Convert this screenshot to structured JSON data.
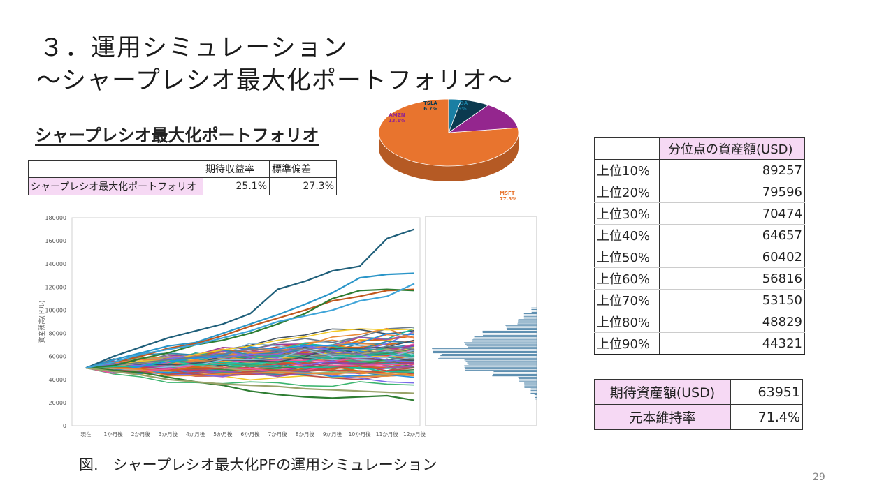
{
  "slide": {
    "title_line1": "３．運用シミュレーション",
    "title_line2": "～シャープレシオ最大化ポートフォリオ～",
    "portfolio_heading": "シャープレシオ最大化ポートフォリオ",
    "caption": "図.　シャープレシオ最大化PFの運用シミュレーション",
    "page_number": "29"
  },
  "stats_table": {
    "col_expected": "期待収益率",
    "col_stdev": "標準偏差",
    "row_name": "シャープレシオ最大化ポートフォリオ",
    "expected": "25.1%",
    "stdev": "27.3%"
  },
  "quantile_table": {
    "header": "分位点の資産額(USD)",
    "rows": [
      {
        "label": "上位10%",
        "value": "89257"
      },
      {
        "label": "上位20%",
        "value": "79596"
      },
      {
        "label": "上位30%",
        "value": "70474"
      },
      {
        "label": "上位40%",
        "value": "64657"
      },
      {
        "label": "上位50%",
        "value": "60402"
      },
      {
        "label": "上位60%",
        "value": "56816"
      },
      {
        "label": "上位70%",
        "value": "53150"
      },
      {
        "label": "上位80%",
        "value": "48829"
      },
      {
        "label": "上位90%",
        "value": "44321"
      }
    ]
  },
  "summary_table": {
    "expected_label": "期待資産額(USD)",
    "expected_value": "63951",
    "retention_label": "元本維持率",
    "retention_value": "71.4%"
  },
  "colors": {
    "msft": "#e8742e",
    "amzn": "#94268e",
    "tsla": "#0b3a4f",
    "nvda": "#1a7fa3",
    "header_fill": "#f6d9f4",
    "histogram": "#5e8fb0"
  },
  "chart_data": [
    {
      "type": "pie",
      "title": "",
      "slices": [
        {
          "label": "MSFT",
          "value": 77.3,
          "display": "77.3%",
          "color": "#e8742e"
        },
        {
          "label": "AMZN",
          "value": 13.1,
          "display": "13.1%",
          "color": "#94268e"
        },
        {
          "label": "TSLA",
          "value": 6.7,
          "display": "6.7%",
          "color": "#0b3a4f"
        },
        {
          "label": "NVDA",
          "value": 2.9,
          "display": "2.9%",
          "color": "#1a7fa3"
        }
      ]
    },
    {
      "type": "line",
      "title": "",
      "ylabel": "資産残高(ドル)",
      "xlabel": "",
      "categories": [
        "現在",
        "1か月後",
        "2か月後",
        "3か月後",
        "4か月後",
        "5か月後",
        "6か月後",
        "7か月後",
        "8か月後",
        "9か月後",
        "10か月後",
        "11か月後",
        "12か月後"
      ],
      "ylim": [
        0,
        180000
      ],
      "yticks": [
        "0",
        "20000",
        "40000",
        "60000",
        "80000",
        "100000",
        "120000",
        "140000",
        "160000",
        "180000"
      ],
      "grid": false,
      "legend": "none",
      "num_paths": 100,
      "start_value": 50000,
      "series": [
        {
          "values": [
            50000,
            60000,
            68000,
            76000,
            82000,
            88000,
            97000,
            118000,
            125000,
            134000,
            138000,
            162000,
            170000
          ],
          "color": "#1f5f7a"
        },
        {
          "values": [
            50000,
            57000,
            63000,
            69000,
            72000,
            80000,
            88000,
            96000,
            105000,
            115000,
            128000,
            131000,
            132000
          ],
          "color": "#2a95c8"
        },
        {
          "values": [
            50000,
            55000,
            60000,
            67000,
            71000,
            78000,
            86000,
            93000,
            100000,
            108000,
            112000,
            117000,
            118000
          ],
          "color": "#c0561c"
        },
        {
          "values": [
            50000,
            52000,
            58000,
            63000,
            70000,
            74000,
            80000,
            88000,
            97000,
            110000,
            117000,
            118000,
            117000
          ],
          "color": "#2e7d32"
        },
        {
          "values": [
            50000,
            48000,
            46000,
            42000,
            38000,
            35000,
            30000,
            27000,
            25000,
            24000,
            25000,
            26000,
            22000
          ],
          "color": "#2e7d32"
        },
        {
          "values": [
            50000,
            47000,
            44000,
            40000,
            38000,
            36000,
            35000,
            34000,
            32000,
            31000,
            30000,
            29000,
            28000
          ],
          "color": "#9aa36a"
        },
        {
          "values": [
            50000,
            55000,
            62000,
            66000,
            70000,
            76000,
            82000,
            90000,
            95000,
            100000,
            108000,
            112000,
            123000
          ],
          "color": "#3ea4d8"
        }
      ]
    },
    {
      "type": "bar",
      "orientation": "horizontal",
      "title": "",
      "x": [
        25000,
        30000,
        35000,
        40000,
        45000,
        50000,
        55000,
        60000,
        65000,
        70000,
        75000,
        80000,
        85000,
        90000,
        95000,
        100000
      ],
      "values": [
        1,
        2,
        4,
        8,
        15,
        23,
        30,
        34,
        33,
        29,
        23,
        17,
        12,
        7,
        4,
        2
      ]
    }
  ]
}
